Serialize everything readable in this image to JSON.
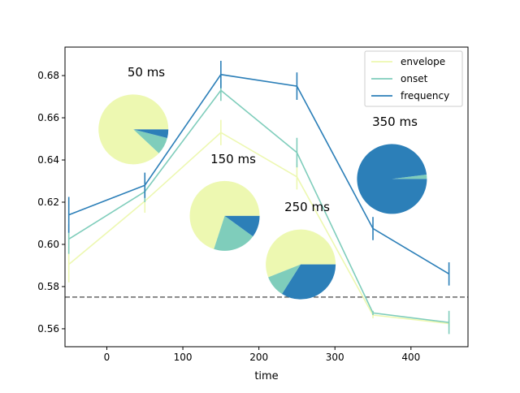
{
  "chart_data": {
    "type": "line",
    "xlabel": "time",
    "ylabel": "",
    "xlim": [
      -55,
      475
    ],
    "ylim": [
      0.5515,
      0.6935
    ],
    "xticks": [
      0,
      100,
      200,
      300,
      400
    ],
    "yticks": [
      0.56,
      0.58,
      0.6,
      0.62,
      0.64,
      0.66,
      0.68
    ],
    "ytick_labels": [
      "0.56",
      "0.58",
      "0.60",
      "0.62",
      "0.64",
      "0.66",
      "0.68"
    ],
    "grid": false,
    "legend_position": "top-right",
    "chance_line": {
      "y": 0.575,
      "style": "dashed",
      "color": "#666666"
    },
    "x": [
      -50,
      50,
      150,
      250,
      350,
      450
    ],
    "series": [
      {
        "name": "envelope",
        "color": "#edf8b1",
        "values": [
          0.5905,
          0.6205,
          0.653,
          0.632,
          0.5665,
          0.5625
        ],
        "errors": [
          0.0085,
          0.0055,
          0.006,
          0.006,
          0.0015,
          0.0015
        ]
      },
      {
        "name": "onset",
        "color": "#7fcdbb",
        "values": [
          0.6025,
          0.625,
          0.673,
          0.6435,
          0.5675,
          0.563
        ],
        "errors": [
          0.007,
          0.005,
          0.005,
          0.007,
          0.001,
          0.0055
        ]
      },
      {
        "name": "frequency",
        "color": "#2c7fb8",
        "values": [
          0.614,
          0.628,
          0.6805,
          0.675,
          0.6075,
          0.586
        ],
        "errors": [
          0.0085,
          0.006,
          0.0065,
          0.0065,
          0.0055,
          0.0055
        ]
      }
    ],
    "annotations": [
      "50 ms",
      "150 ms",
      "250 ms",
      "350 ms"
    ],
    "pies": [
      {
        "label": "50 ms",
        "x": 35,
        "y": 0.6545,
        "slices": [
          0.88,
          0.08,
          0.04
        ]
      },
      {
        "label": "150 ms",
        "x": 155,
        "y": 0.6135,
        "slices": [
          0.7,
          0.2,
          0.1
        ]
      },
      {
        "label": "250 ms",
        "x": 255,
        "y": 0.5905,
        "slices": [
          0.56,
          0.1,
          0.34
        ]
      },
      {
        "label": "350 ms",
        "x": 375,
        "y": 0.631,
        "slices": [
          0.0,
          0.02,
          0.98
        ]
      }
    ]
  }
}
